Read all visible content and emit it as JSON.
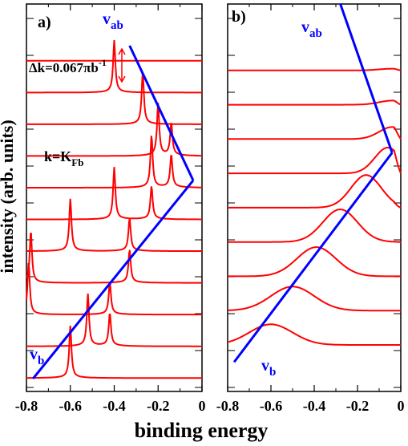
{
  "figure": {
    "ylabel": "intensity (arb. units)",
    "xlabel": "binding energy"
  },
  "chart_data": [
    {
      "type": "line",
      "panel_label": "a)",
      "xlim": [
        -0.8,
        0.0
      ],
      "x_ticks": [
        -0.8,
        -0.6,
        -0.4,
        -0.2,
        0
      ],
      "x_tick_labels": [
        "-0.8",
        "-0.6",
        "-0.4",
        "-0.2",
        "0"
      ],
      "xlabel": "binding energy",
      "ylabel": "intensity (arb. units)",
      "grid": false,
      "description": "Stacked spectra (curves offset vertically); each shows a sharp quasiparticle peak",
      "curve_color": "#ff0000",
      "dispersion_color": "#0000ff",
      "spectra": [
        {
          "index": 0,
          "baseline": 0.0,
          "peak_positions": [
            -0.6
          ]
        },
        {
          "index": 1,
          "baseline": 1.0,
          "peak_positions": [
            -0.52,
            -0.42
          ]
        },
        {
          "index": 2,
          "baseline": 2.0,
          "peak_positions": [
            -0.79,
            -0.42
          ]
        },
        {
          "index": 3,
          "baseline": 3.0,
          "peak_positions": [
            -0.78,
            -0.33
          ]
        },
        {
          "index": 4,
          "baseline": 4.0,
          "peak_positions": [
            -0.6,
            -0.33
          ]
        },
        {
          "index": 5,
          "baseline": 5.0,
          "peak_positions": [
            -0.4,
            -0.23
          ]
        },
        {
          "index": 6,
          "baseline": 6.0,
          "peak_positions": [
            -0.23,
            -0.14
          ]
        },
        {
          "index": 7,
          "baseline": 7.0,
          "peak_positions": [
            -0.2,
            -0.14
          ]
        },
        {
          "index": 8,
          "baseline": 8.0,
          "peak_positions": [
            -0.27
          ]
        },
        {
          "index": 9,
          "baseline": 9.0,
          "peak_positions": [
            -0.4
          ]
        },
        {
          "index": 10,
          "baseline": 10.0,
          "peak_positions": []
        }
      ],
      "lines": [
        {
          "name": "v_b",
          "points": [
            [
              -0.77,
              0.0
            ],
            [
              -0.04,
              6.25
            ]
          ]
        },
        {
          "name": "v_ab",
          "points": [
            [
              -0.04,
              6.25
            ],
            [
              -0.33,
              10.5
            ]
          ]
        }
      ],
      "annotations": {
        "v_b": {
          "main": "v",
          "sub": "b"
        },
        "v_ab": {
          "main": "v",
          "sub": "ab"
        },
        "k_label": {
          "main": "k=K",
          "sub": "Fb"
        },
        "dk_label": {
          "text": "Δk=0.067πb",
          "sup": "-1"
        }
      }
    },
    {
      "type": "line",
      "panel_label": "b)",
      "xlim": [
        -0.8,
        0.0
      ],
      "x_ticks": [
        -0.8,
        -0.6,
        -0.4,
        -0.2,
        0
      ],
      "x_tick_labels": [
        "-0.8",
        "-0.6",
        "-0.4",
        "-0.2",
        "0"
      ],
      "xlabel": "binding energy",
      "grid": false,
      "description": "Stacked broadened spectra (curves offset vertically)",
      "curve_color": "#ff0000",
      "dispersion_color": "#0000ff",
      "spectra": [
        {
          "index": 0,
          "baseline": 0.0,
          "peak_position": -0.6,
          "peak_height": 0.6,
          "width": 0.1
        },
        {
          "index": 1,
          "baseline": 1.0,
          "peak_position": -0.5,
          "peak_height": 0.7,
          "width": 0.1
        },
        {
          "index": 2,
          "baseline": 2.0,
          "peak_position": -0.39,
          "peak_height": 0.85,
          "width": 0.09
        },
        {
          "index": 3,
          "baseline": 3.0,
          "peak_position": -0.28,
          "peak_height": 0.95,
          "width": 0.08
        },
        {
          "index": 4,
          "baseline": 4.0,
          "peak_position": -0.16,
          "peak_height": 0.95,
          "width": 0.07
        },
        {
          "index": 5,
          "baseline": 5.0,
          "peak_position": -0.06,
          "peak_height": 0.75,
          "width": 0.06
        },
        {
          "index": 6,
          "baseline": 6.0,
          "peak_position": -0.04,
          "peak_height": 0.35,
          "width": 0.06
        },
        {
          "index": 7,
          "baseline": 7.0,
          "peak_position": -0.04,
          "peak_height": 0.12,
          "width": 0.06
        },
        {
          "index": 8,
          "baseline": 8.0,
          "peak_position": -0.04,
          "peak_height": 0.05,
          "width": 0.06
        }
      ],
      "lines": [
        {
          "name": "v_b",
          "points": [
            [
              -0.77,
              -0.5
            ],
            [
              -0.04,
              5.6
            ]
          ]
        },
        {
          "name": "v_ab",
          "points": [
            [
              -0.04,
              5.6
            ],
            [
              -0.28,
              9.95
            ]
          ]
        }
      ],
      "annotations": {
        "v_b": {
          "main": "v",
          "sub": "b"
        },
        "v_ab": {
          "main": "v",
          "sub": "ab"
        }
      }
    }
  ]
}
